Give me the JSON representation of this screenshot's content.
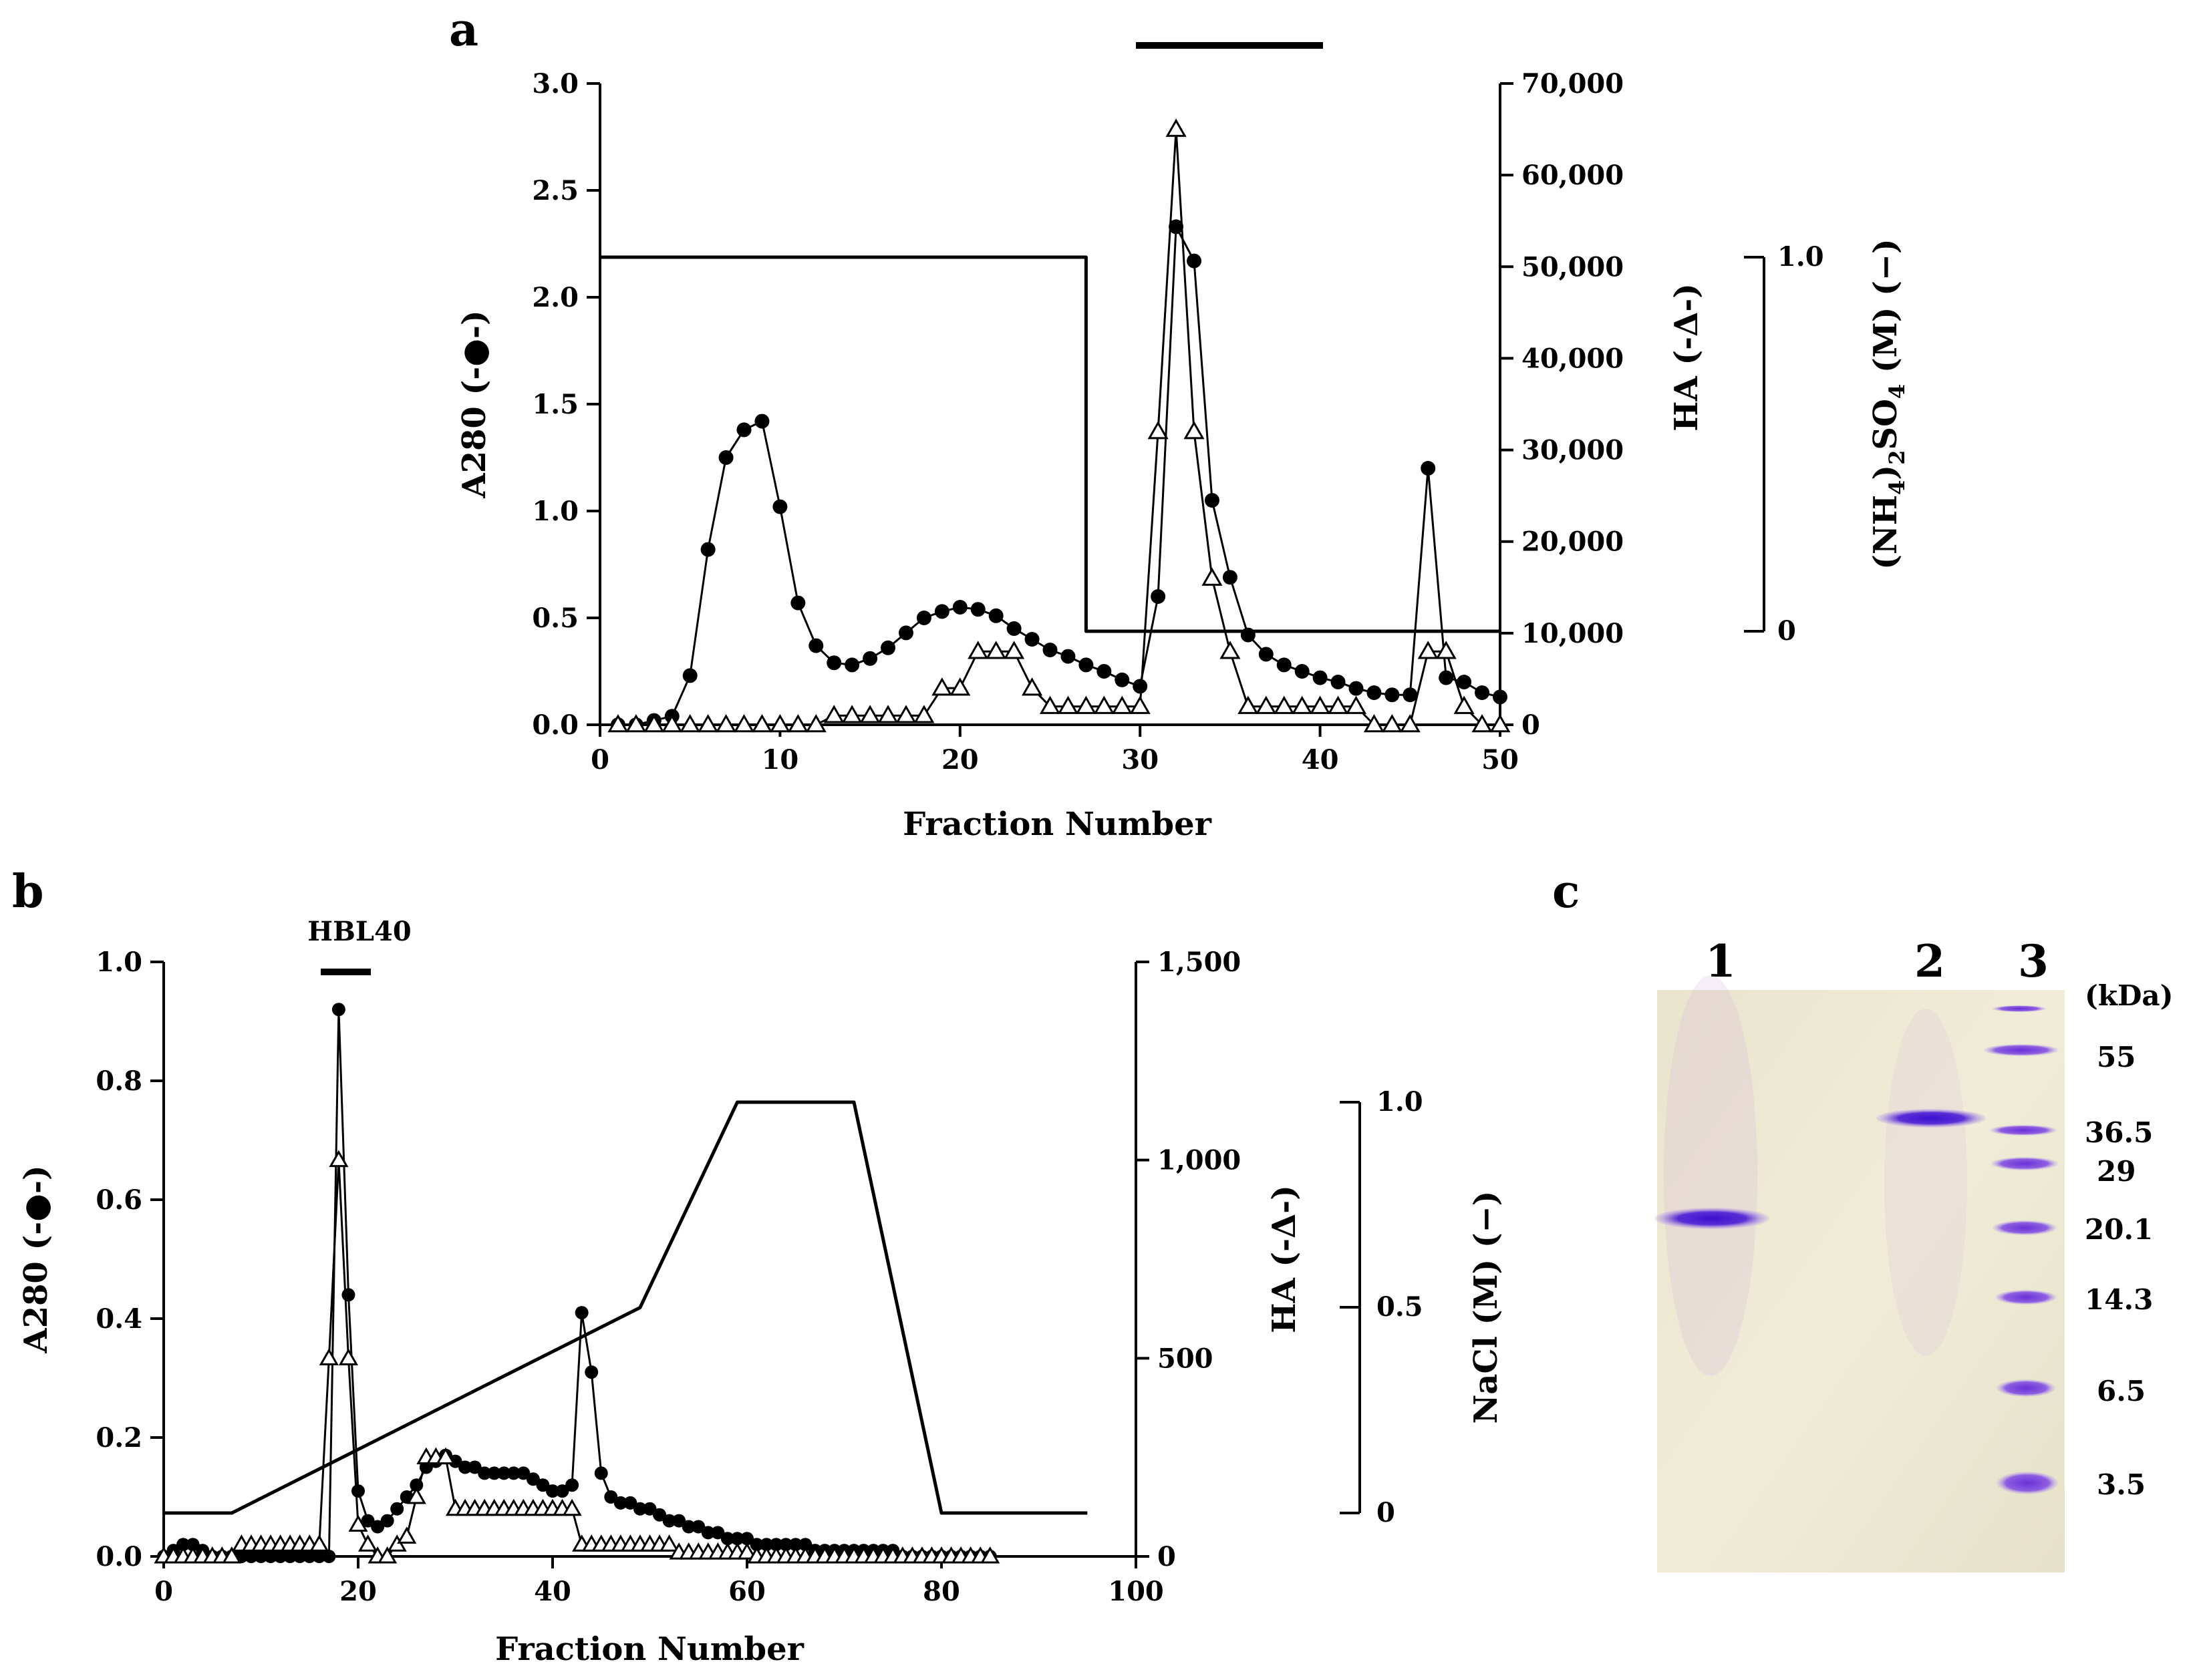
{
  "panels": {
    "a": {
      "label": "a"
    },
    "b": {
      "label": "b",
      "pool_label": "HBL40"
    },
    "c": {
      "label": "c"
    }
  },
  "chart_data": [
    {
      "panel": "a",
      "type": "line",
      "title": "",
      "xlabel": "Fraction Number",
      "ylabel": "A280 (-●-)",
      "y2label": "HA (-Δ-)",
      "y3label": "(NH4)2SO4 (M) (−)",
      "xlim": [
        0,
        50
      ],
      "ylim": [
        0,
        3.0
      ],
      "y2lim": [
        0,
        70000
      ],
      "y3range": [
        0,
        1.0
      ],
      "xticks": [
        "0",
        "10",
        "20",
        "30",
        "40",
        "50"
      ],
      "yticks": [
        "0.0",
        "0.5",
        "1.0",
        "1.5",
        "2.0",
        "2.5",
        "3.0"
      ],
      "y2ticks": [
        "0",
        "10,000",
        "20,000",
        "30,000",
        "40,000",
        "50,000",
        "60,000",
        "70,000"
      ],
      "y3ticks": [
        "0",
        "1.0"
      ],
      "pooled_fractions": [
        30,
        40
      ],
      "series": [
        {
          "name": "A280",
          "marker": "filled-circle",
          "axis": "left",
          "x": [
            1,
            2,
            3,
            4,
            5,
            6,
            7,
            8,
            9,
            10,
            11,
            12,
            13,
            14,
            15,
            16,
            17,
            18,
            19,
            20,
            21,
            22,
            23,
            24,
            25,
            26,
            27,
            28,
            29,
            30,
            31,
            32,
            33,
            34,
            35,
            36,
            37,
            38,
            39,
            40,
            41,
            42,
            43,
            44,
            45,
            46,
            47,
            48,
            49,
            50
          ],
          "values": [
            0.0,
            0.0,
            0.02,
            0.04,
            0.23,
            0.82,
            1.25,
            1.38,
            1.42,
            1.02,
            0.57,
            0.37,
            0.29,
            0.28,
            0.31,
            0.36,
            0.43,
            0.5,
            0.53,
            0.55,
            0.54,
            0.51,
            0.45,
            0.4,
            0.35,
            0.32,
            0.28,
            0.25,
            0.21,
            0.18,
            0.6,
            2.33,
            2.17,
            1.05,
            0.69,
            0.42,
            0.33,
            0.28,
            0.25,
            0.22,
            0.2,
            0.17,
            0.15,
            0.14,
            0.14,
            1.2,
            0.22,
            0.2,
            0.15,
            0.13
          ]
        },
        {
          "name": "HA",
          "marker": "open-triangle",
          "axis": "right",
          "x": [
            1,
            2,
            3,
            4,
            5,
            6,
            7,
            8,
            9,
            10,
            11,
            12,
            13,
            14,
            15,
            16,
            17,
            18,
            19,
            20,
            21,
            22,
            23,
            24,
            25,
            26,
            27,
            28,
            29,
            30,
            31,
            32,
            33,
            34,
            35,
            36,
            37,
            38,
            39,
            40,
            41,
            42,
            43,
            44,
            45,
            46,
            47,
            48,
            49,
            50
          ],
          "values": [
            0,
            0,
            0,
            0,
            0,
            0,
            0,
            0,
            0,
            0,
            0,
            0,
            1000,
            1000,
            1000,
            1000,
            1000,
            1000,
            4000,
            4000,
            8000,
            8000,
            8000,
            4000,
            2000,
            2000,
            2000,
            2000,
            2000,
            2000,
            32000,
            65000,
            32000,
            16000,
            8000,
            2000,
            2000,
            2000,
            2000,
            2000,
            2000,
            2000,
            0,
            0,
            0,
            8000,
            8000,
            2000,
            0,
            0
          ]
        },
        {
          "name": "(NH4)2SO4",
          "marker": "none",
          "axis": "salt",
          "x": [
            0,
            27,
            27,
            50
          ],
          "values": [
            1.0,
            1.0,
            0.0,
            0.0
          ]
        }
      ]
    },
    {
      "panel": "b",
      "type": "line",
      "title": "",
      "xlabel": "Fraction Number",
      "ylabel": "A280 (-●-)",
      "y2label": "HA (-Δ-)",
      "y3label": "NaCl (M) (−)",
      "xlim": [
        0,
        100
      ],
      "ylim": [
        0,
        1.0
      ],
      "y2lim": [
        0,
        1500
      ],
      "y3range": [
        0,
        1.0
      ],
      "xticks": [
        "0",
        "20",
        "40",
        "60",
        "80",
        "100"
      ],
      "yticks": [
        "0.0",
        "0.2",
        "0.4",
        "0.6",
        "0.8",
        "1.0"
      ],
      "y2ticks": [
        "0",
        "500",
        "1,000",
        "1,500"
      ],
      "y3ticks": [
        "0",
        "0.5",
        "1.0"
      ],
      "pooled_fractions": [
        16,
        21
      ],
      "series": [
        {
          "name": "A280",
          "marker": "filled-circle",
          "axis": "left",
          "x": [
            0,
            1,
            2,
            3,
            4,
            5,
            6,
            7,
            8,
            9,
            10,
            11,
            12,
            13,
            14,
            15,
            16,
            17,
            18,
            19,
            20,
            21,
            22,
            23,
            24,
            25,
            26,
            27,
            28,
            29,
            30,
            31,
            32,
            33,
            34,
            35,
            36,
            37,
            38,
            39,
            40,
            41,
            42,
            43,
            44,
            45,
            46,
            47,
            48,
            49,
            50,
            51,
            52,
            53,
            54,
            55,
            56,
            57,
            58,
            59,
            60,
            61,
            62,
            63,
            64,
            65,
            66,
            67,
            68,
            69,
            70,
            71,
            72,
            73,
            74,
            75,
            76,
            77,
            78,
            79,
            80,
            81,
            82,
            83,
            84,
            85
          ],
          "values": [
            0.0,
            0.01,
            0.02,
            0.02,
            0.01,
            0.0,
            0.0,
            0.0,
            0.0,
            0.0,
            0.0,
            0.0,
            0.0,
            0.0,
            0.0,
            0.0,
            0.0,
            0.0,
            0.92,
            0.44,
            0.11,
            0.06,
            0.05,
            0.06,
            0.08,
            0.1,
            0.12,
            0.15,
            0.16,
            0.17,
            0.16,
            0.15,
            0.15,
            0.14,
            0.14,
            0.14,
            0.14,
            0.14,
            0.13,
            0.12,
            0.11,
            0.11,
            0.12,
            0.41,
            0.31,
            0.14,
            0.1,
            0.09,
            0.09,
            0.08,
            0.08,
            0.07,
            0.06,
            0.06,
            0.05,
            0.05,
            0.04,
            0.04,
            0.03,
            0.03,
            0.03,
            0.02,
            0.02,
            0.02,
            0.02,
            0.02,
            0.02,
            0.01,
            0.01,
            0.01,
            0.01,
            0.01,
            0.01,
            0.01,
            0.01,
            0.01,
            0.0,
            0.0,
            0.0,
            0.0,
            0.0,
            0.0,
            0.0,
            0.0,
            0.0,
            0.0
          ]
        },
        {
          "name": "HA",
          "marker": "open-triangle",
          "axis": "right",
          "x": [
            0,
            1,
            2,
            3,
            4,
            5,
            6,
            7,
            8,
            9,
            10,
            11,
            12,
            13,
            14,
            15,
            16,
            17,
            18,
            19,
            20,
            21,
            22,
            23,
            24,
            25,
            26,
            27,
            28,
            29,
            30,
            31,
            32,
            33,
            34,
            35,
            36,
            37,
            38,
            39,
            40,
            41,
            42,
            43,
            44,
            45,
            46,
            47,
            48,
            49,
            50,
            51,
            52,
            53,
            54,
            55,
            56,
            57,
            58,
            59,
            60,
            61,
            62,
            63,
            64,
            65,
            66,
            67,
            68,
            69,
            70,
            71,
            72,
            73,
            74,
            75,
            76,
            77,
            78,
            79,
            80,
            81,
            82,
            83,
            84,
            85
          ],
          "values": [
            0,
            0,
            0,
            0,
            0,
            0,
            0,
            0,
            30,
            30,
            30,
            30,
            30,
            30,
            30,
            30,
            30,
            500,
            1000,
            500,
            80,
            30,
            0,
            0,
            30,
            50,
            150,
            250,
            250,
            250,
            120,
            120,
            120,
            120,
            120,
            120,
            120,
            120,
            120,
            120,
            120,
            120,
            120,
            30,
            30,
            30,
            30,
            30,
            30,
            30,
            30,
            30,
            30,
            10,
            10,
            10,
            10,
            10,
            10,
            10,
            10,
            0,
            0,
            0,
            0,
            0,
            0,
            0,
            0,
            0,
            0,
            0,
            0,
            0,
            0,
            0,
            0,
            0,
            0,
            0,
            0,
            0,
            0,
            0,
            0,
            0
          ]
        },
        {
          "name": "NaCl",
          "marker": "none",
          "axis": "salt",
          "x": [
            0,
            7,
            49,
            59,
            71,
            80,
            95
          ],
          "values": [
            0.0,
            0.0,
            0.5,
            1.0,
            1.0,
            0.0,
            0.0
          ]
        }
      ]
    }
  ],
  "gel": {
    "lanes": [
      "1",
      "2",
      "3"
    ],
    "unit": "(kDa)",
    "markers": [
      "55",
      "36.5",
      "29",
      "20.1",
      "14.3",
      "6.5",
      "3.5"
    ]
  },
  "colors": {
    "line": "#000000",
    "gel_background": "#ece7cf",
    "band": "#5a2fd6",
    "marker_band": "#7a46d8"
  }
}
